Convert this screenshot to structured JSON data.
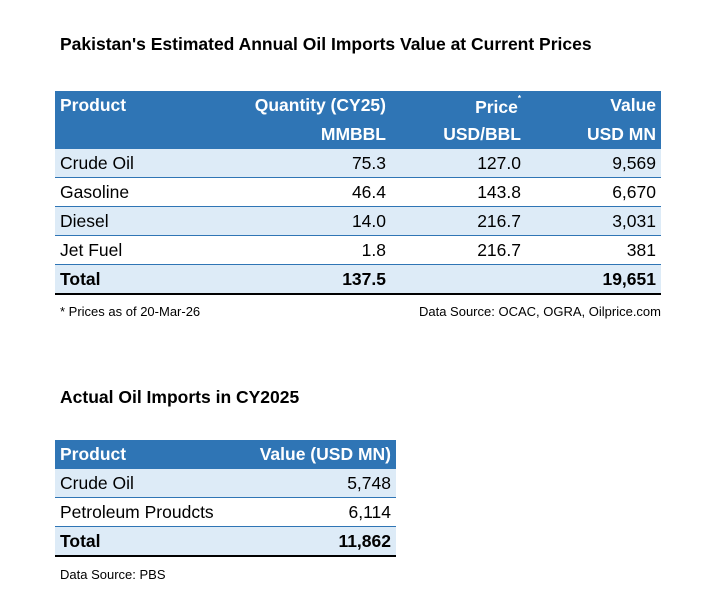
{
  "table1": {
    "title": "Pakistan's Estimated Annual Oil Imports Value at Current Prices",
    "headers": {
      "product": "Product",
      "quantity_l1": "Quantity (CY25)",
      "quantity_l2": "MMBBL",
      "price_l1": "Price",
      "price_mark": "*",
      "price_l2": "USD/BBL",
      "value_l1": "Value",
      "value_l2": "USD MN"
    },
    "rows": [
      {
        "product": "Crude Oil",
        "quantity": "75.3",
        "price": "127.0",
        "value": "9,569"
      },
      {
        "product": "Gasoline",
        "quantity": "46.4",
        "price": "143.8",
        "value": "6,670"
      },
      {
        "product": "Diesel",
        "quantity": "14.0",
        "price": "216.7",
        "value": "3,031"
      },
      {
        "product": "Jet Fuel",
        "quantity": "1.8",
        "price": "216.7",
        "value": "381"
      }
    ],
    "total": {
      "label": "Total",
      "quantity": "137.5",
      "price": "",
      "value": "19,651"
    },
    "footnote": "* Prices as of 20-Mar-26",
    "source": "Data Source: OCAC, OGRA, Oilprice.com"
  },
  "table2": {
    "title": "Actual Oil Imports in CY2025",
    "headers": {
      "product": "Product",
      "value": "Value (USD MN)"
    },
    "rows": [
      {
        "product": "Crude Oil",
        "value": "5,748"
      },
      {
        "product": "Petroleum Proudcts",
        "value": "6,114"
      }
    ],
    "total": {
      "label": "Total",
      "value": "11,862"
    },
    "source": "Data Source: PBS"
  }
}
